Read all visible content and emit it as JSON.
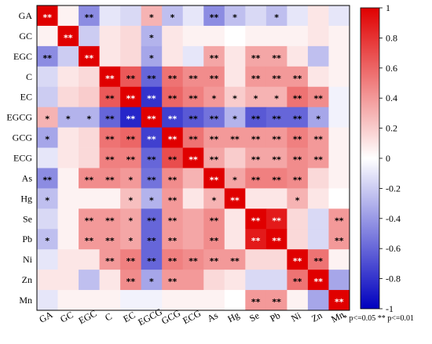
{
  "chart_data": {
    "type": "heatmap",
    "labels": [
      "GA",
      "GC",
      "EGC",
      "C",
      "EC",
      "EGCG",
      "GCG",
      "ECG",
      "As",
      "Hg",
      "Se",
      "Pb",
      "Ni",
      "Zn",
      "Mn"
    ],
    "values": [
      [
        1.0,
        0.05,
        -0.45,
        -0.1,
        -0.15,
        0.3,
        -0.25,
        -0.1,
        -0.45,
        -0.25,
        -0.15,
        -0.25,
        -0.1,
        0.1,
        -0.1
      ],
      [
        0.05,
        1.0,
        -0.2,
        0.1,
        0.15,
        -0.3,
        0.1,
        0.05,
        0.05,
        0.0,
        0.05,
        0.05,
        0.05,
        0.1,
        0.05
      ],
      [
        -0.45,
        -0.2,
        1.0,
        0.1,
        0.15,
        -0.35,
        0.1,
        -0.1,
        0.35,
        0.1,
        0.35,
        0.35,
        0.1,
        -0.25,
        0.05
      ],
      [
        -0.15,
        0.1,
        0.15,
        1.0,
        0.65,
        -0.6,
        0.55,
        0.45,
        0.45,
        0.1,
        0.4,
        0.4,
        0.4,
        0.1,
        0.05
      ],
      [
        -0.2,
        0.15,
        0.2,
        0.65,
        1.0,
        -0.8,
        0.6,
        0.5,
        0.4,
        0.2,
        0.3,
        0.3,
        0.55,
        0.45,
        -0.05
      ],
      [
        0.3,
        -0.3,
        -0.3,
        -0.6,
        -0.85,
        1.0,
        -0.75,
        -0.65,
        -0.55,
        -0.3,
        -0.65,
        -0.6,
        -0.6,
        -0.35,
        -0.05
      ],
      [
        -0.35,
        0.1,
        0.15,
        0.55,
        0.6,
        -0.75,
        1.0,
        0.55,
        0.4,
        0.4,
        0.4,
        0.4,
        0.5,
        0.4,
        0.05
      ],
      [
        -0.1,
        0.1,
        0.15,
        0.5,
        0.5,
        -0.6,
        0.7,
        1.0,
        0.35,
        0.2,
        0.35,
        0.35,
        0.45,
        0.4,
        0.05
      ],
      [
        -0.45,
        0.05,
        0.45,
        0.45,
        0.4,
        -0.55,
        0.45,
        0.3,
        1.0,
        0.35,
        0.5,
        0.5,
        0.45,
        0.15,
        0.05
      ],
      [
        -0.25,
        0.05,
        0.05,
        0.05,
        0.25,
        -0.3,
        0.4,
        0.1,
        0.3,
        1.0,
        0.1,
        0.1,
        0.3,
        0.1,
        0.0
      ],
      [
        -0.15,
        0.05,
        0.4,
        0.4,
        0.35,
        -0.6,
        0.4,
        0.35,
        0.45,
        0.1,
        1.0,
        0.9,
        0.15,
        -0.15,
        0.4
      ],
      [
        -0.25,
        0.05,
        0.4,
        0.4,
        0.35,
        -0.6,
        0.4,
        0.35,
        0.45,
        0.1,
        0.9,
        1.0,
        0.15,
        -0.15,
        0.4
      ],
      [
        -0.1,
        0.1,
        0.1,
        0.4,
        0.5,
        -0.6,
        0.5,
        0.45,
        0.4,
        0.4,
        0.15,
        0.15,
        1.0,
        0.55,
        0.05
      ],
      [
        0.1,
        0.1,
        -0.25,
        0.1,
        0.45,
        -0.35,
        0.4,
        0.4,
        0.15,
        0.1,
        -0.15,
        -0.15,
        0.55,
        1.0,
        -0.35
      ],
      [
        -0.1,
        0.05,
        0.05,
        0.05,
        -0.05,
        -0.05,
        0.05,
        0.05,
        0.05,
        0.0,
        0.4,
        0.4,
        0.05,
        -0.35,
        1.0
      ]
    ],
    "significance": [
      [
        "**",
        "",
        "**",
        "",
        "",
        "*",
        "*",
        "",
        "**",
        "*",
        "",
        "*",
        "",
        "",
        ""
      ],
      [
        "",
        "**",
        "",
        "",
        "",
        "*",
        "",
        "",
        "",
        "",
        "",
        "",
        "",
        "",
        ""
      ],
      [
        "**",
        "",
        "**",
        "",
        "",
        "*",
        "",
        "",
        "**",
        "",
        "**",
        "**",
        "",
        "",
        ""
      ],
      [
        "",
        "",
        "",
        "**",
        "**",
        "**",
        "**",
        "**",
        "**",
        "",
        "**",
        "**",
        "**",
        "",
        ""
      ],
      [
        "",
        "",
        "",
        "**",
        "**",
        "**",
        "**",
        "**",
        "*",
        "*",
        "*",
        "*",
        "**",
        "**",
        ""
      ],
      [
        "*",
        "*",
        "*",
        "**",
        "**",
        "**",
        "**",
        "**",
        "**",
        "*",
        "**",
        "**",
        "**",
        "*",
        ""
      ],
      [
        "*",
        "",
        "",
        "**",
        "**",
        "**",
        "**",
        "**",
        "**",
        "**",
        "**",
        "**",
        "**",
        "**",
        ""
      ],
      [
        "",
        "",
        "",
        "**",
        "**",
        "**",
        "**",
        "**",
        "**",
        "",
        "**",
        "**",
        "**",
        "**",
        ""
      ],
      [
        "**",
        "",
        "**",
        "**",
        "*",
        "**",
        "**",
        "",
        "**",
        "*",
        "**",
        "**",
        "**",
        "",
        ""
      ],
      [
        "*",
        "",
        "",
        "",
        "*",
        "*",
        "**",
        "",
        "*",
        "**",
        "",
        "",
        "*",
        "",
        ""
      ],
      [
        "",
        "",
        "**",
        "**",
        "*",
        "**",
        "**",
        "",
        "**",
        "",
        "**",
        "**",
        "",
        "",
        "**"
      ],
      [
        "*",
        "",
        "**",
        "**",
        "*",
        "**",
        "**",
        "",
        "**",
        "",
        "**",
        "**",
        "",
        "",
        "**"
      ],
      [
        "",
        "",
        "",
        "**",
        "**",
        "**",
        "**",
        "**",
        "**",
        "**",
        "",
        "",
        "**",
        "**",
        ""
      ],
      [
        "",
        "",
        "",
        "",
        "**",
        "*",
        "**",
        "",
        "",
        "",
        "",
        "",
        "**",
        "**",
        ""
      ],
      [
        "",
        "",
        "",
        "",
        "",
        "",
        "",
        "",
        "",
        "",
        "**",
        "**",
        "",
        "",
        "**"
      ]
    ],
    "colorbar": {
      "min": -1,
      "max": 1,
      "ticks": [
        -1,
        -0.8,
        -0.6,
        -0.4,
        -0.2,
        0,
        0.2,
        0.4,
        0.6,
        0.8,
        1
      ],
      "colors": {
        "negative": "#0000bf",
        "zero": "#ffffff",
        "positive": "#e00000"
      }
    },
    "legend_note": "* p<=0.05  ** p<=0.01"
  }
}
